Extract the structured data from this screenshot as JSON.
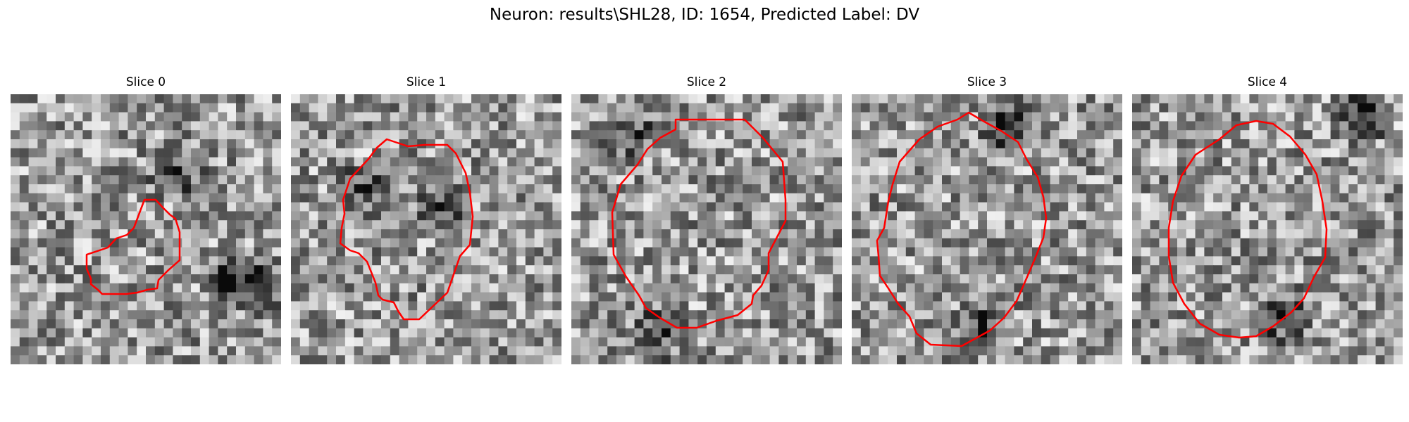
{
  "figure": {
    "title": "Neuron: results\\SHL28, ID: 1654, Predicted Label: DV"
  },
  "panels": [
    {
      "title": "Slice 0"
    },
    {
      "title": "Slice 1"
    },
    {
      "title": "Slice 2"
    },
    {
      "title": "Slice 3"
    },
    {
      "title": "Slice 4"
    }
  ],
  "colors": {
    "contour": "#ff0000",
    "background": "#ffffff",
    "colormap": "gray"
  },
  "image": {
    "grid": [
      30,
      30
    ]
  }
}
